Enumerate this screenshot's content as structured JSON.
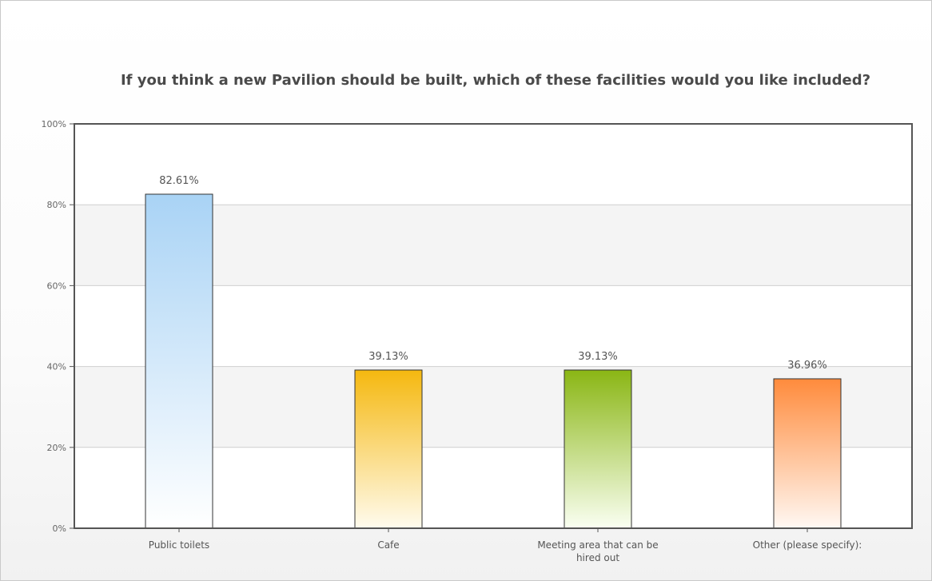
{
  "chart_data": {
    "type": "bar",
    "title": "If you think a new Pavilion should be built, which of these facilities would you like included?",
    "categories": [
      "Public toilets",
      "Cafe",
      "Meeting area that can be hired out",
      "Other (please specify):"
    ],
    "values": [
      82.61,
      39.13,
      39.13,
      36.96
    ],
    "value_labels": [
      "82.61%",
      "39.13%",
      "39.13%",
      "36.96%"
    ],
    "ylim": [
      0,
      100
    ],
    "yticks": [
      0,
      20,
      40,
      60,
      80,
      100
    ],
    "ytick_labels": [
      "0%",
      "20%",
      "40%",
      "60%",
      "80%",
      "100%"
    ],
    "xlabel": "",
    "ylabel": "",
    "grid": true,
    "colors": [
      {
        "top": "#a9d3f5",
        "bottom": "#ffffff"
      },
      {
        "top": "#f5b80f",
        "bottom": "#fffbee"
      },
      {
        "top": "#8ab614",
        "bottom": "#fafff2"
      },
      {
        "top": "#ff8b3c",
        "bottom": "#fff8f3"
      }
    ]
  }
}
